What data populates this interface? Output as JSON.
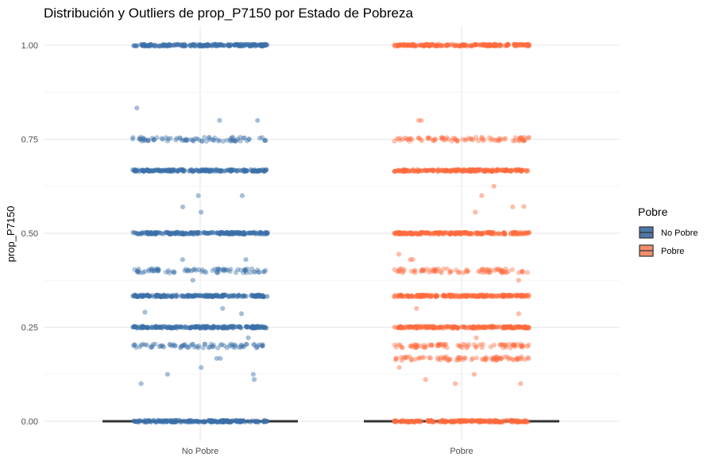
{
  "chart_data": {
    "type": "box-jitter",
    "title": "Distribución y Outliers de prop_P7150 por Estado de Pobreza",
    "xlabel": "",
    "ylabel": "prop_P7150",
    "categories": [
      "No Pobre",
      "Pobre"
    ],
    "y_ticks": [
      "0.00",
      "0.25",
      "0.50",
      "0.75",
      "1.00"
    ],
    "ylim": [
      -0.05,
      1.05
    ],
    "grid": true,
    "legend": {
      "title": "Pobre",
      "position": "right",
      "entries": [
        {
          "label": "No Pobre",
          "color": "#4e79a7"
        },
        {
          "label": "Pobre",
          "color": "#f28e6b"
        }
      ]
    },
    "series": [
      {
        "name": "No Pobre",
        "color": "#3a6fa8",
        "box": {
          "q1": 0,
          "median": 0,
          "q3": 0
        },
        "dense_levels": [
          0,
          0.2,
          0.25,
          0.3333,
          0.4,
          0.5,
          0.6667,
          0.75,
          1.0
        ],
        "heavy_levels": [
          0,
          0.25,
          0.3333,
          0.5,
          0.6667,
          1.0
        ],
        "outliers": [
          0.8,
          0.8,
          0.833,
          0.6,
          0.6,
          0.57,
          0.556,
          0.43,
          0.43,
          0.375,
          0.3,
          0.29,
          0.286,
          0.222,
          0.167,
          0.167,
          0.143,
          0.125,
          0.125,
          0.111,
          0.1
        ]
      },
      {
        "name": "Pobre",
        "color": "#ff6a3d",
        "box": {
          "q1": 0,
          "median": 0,
          "q3": 0
        },
        "dense_levels": [
          0,
          0.1667,
          0.2,
          0.25,
          0.3333,
          0.4,
          0.5,
          0.6667,
          0.75,
          1.0
        ],
        "heavy_levels": [
          0,
          0.25,
          0.3333,
          0.5,
          0.6667,
          1.0
        ],
        "outliers": [
          0.8,
          0.8,
          0.625,
          0.6,
          0.57,
          0.571,
          0.556,
          0.444,
          0.43,
          0.43,
          0.375,
          0.3,
          0.286,
          0.222,
          0.143,
          0.125,
          0.111,
          0.1,
          0.1
        ]
      }
    ]
  }
}
